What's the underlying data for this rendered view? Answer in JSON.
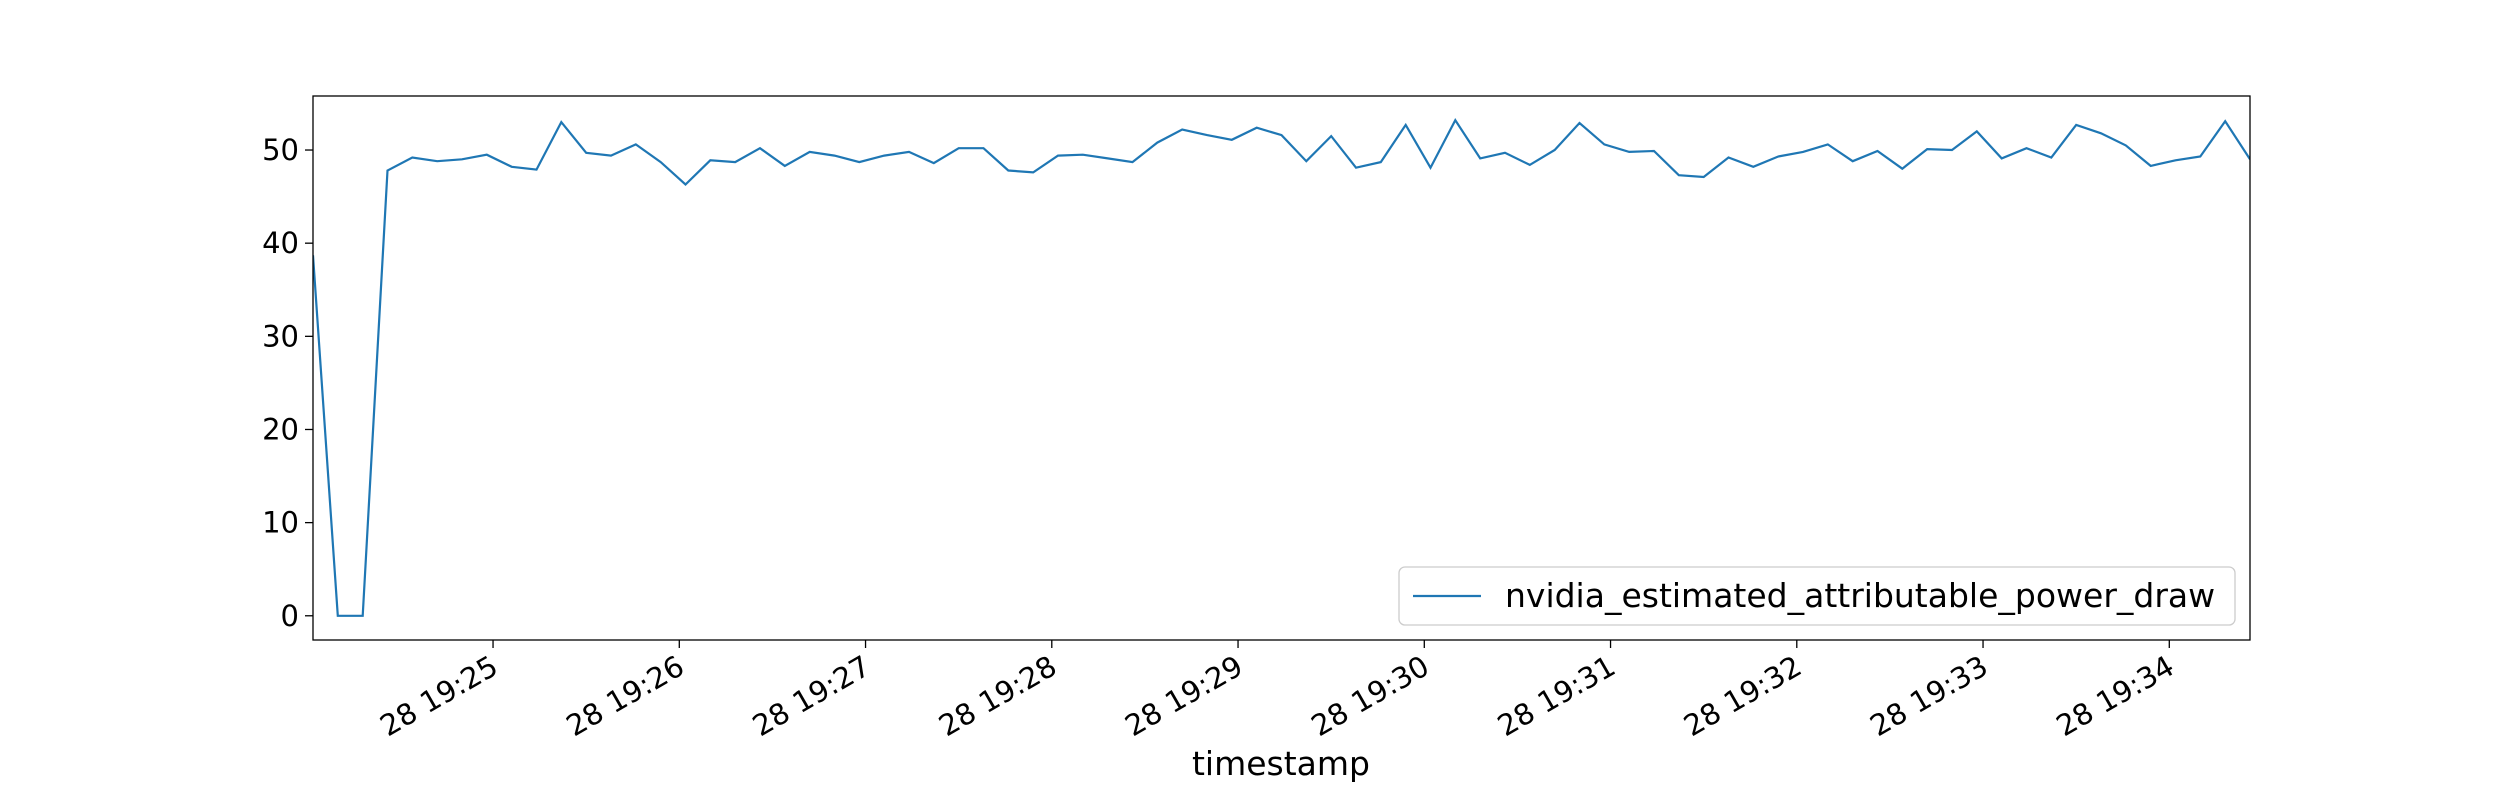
{
  "chart_data": {
    "type": "line",
    "xlabel": "timestamp",
    "x": [
      "28 19:24:02",
      "28 19:24:10",
      "28 19:24:18",
      "28 19:24:26",
      "28 19:24:34",
      "28 19:24:42",
      "28 19:24:50",
      "28 19:24:58",
      "28 19:25:06",
      "28 19:25:14",
      "28 19:25:22",
      "28 19:25:30",
      "28 19:25:38",
      "28 19:25:46",
      "28 19:25:54",
      "28 19:26:02",
      "28 19:26:10",
      "28 19:26:18",
      "28 19:26:26",
      "28 19:26:34",
      "28 19:26:42",
      "28 19:26:50",
      "28 19:26:58",
      "28 19:27:06",
      "28 19:27:14",
      "28 19:27:22",
      "28 19:27:30",
      "28 19:27:38",
      "28 19:27:46",
      "28 19:27:54",
      "28 19:28:02",
      "28 19:28:10",
      "28 19:28:18",
      "28 19:28:26",
      "28 19:28:34",
      "28 19:28:42",
      "28 19:28:50",
      "28 19:28:58",
      "28 19:29:06",
      "28 19:29:14",
      "28 19:29:22",
      "28 19:29:30",
      "28 19:29:38",
      "28 19:29:46",
      "28 19:29:54",
      "28 19:30:02",
      "28 19:30:10",
      "28 19:30:18",
      "28 19:30:26",
      "28 19:30:34",
      "28 19:30:42",
      "28 19:30:50",
      "28 19:30:58",
      "28 19:31:06",
      "28 19:31:14",
      "28 19:31:22",
      "28 19:31:30",
      "28 19:31:38",
      "28 19:31:46",
      "28 19:31:54",
      "28 19:32:02",
      "28 19:32:10",
      "28 19:32:18",
      "28 19:32:26",
      "28 19:32:34",
      "28 19:32:42",
      "28 19:32:50",
      "28 19:32:58",
      "28 19:33:06",
      "28 19:33:14",
      "28 19:33:22",
      "28 19:33:30",
      "28 19:33:38",
      "28 19:33:46",
      "28 19:33:54",
      "28 19:34:02",
      "28 19:34:10",
      "28 19:34:18",
      "28 19:34:26"
    ],
    "series": [
      {
        "name": "nvidia_estimated_attributable_power_draw",
        "color": "#1f77b4",
        "values": [
          38.7,
          0,
          0,
          47.8,
          49.2,
          48.8,
          49.0,
          49.5,
          48.2,
          47.9,
          53.0,
          49.7,
          49.4,
          50.6,
          48.7,
          46.3,
          48.9,
          48.7,
          50.2,
          48.3,
          49.8,
          49.4,
          48.7,
          49.4,
          49.8,
          48.6,
          50.2,
          50.2,
          47.8,
          47.6,
          49.4,
          49.5,
          49.1,
          48.7,
          50.8,
          52.2,
          51.6,
          51.1,
          52.4,
          51.6,
          48.8,
          51.5,
          48.1,
          48.7,
          52.7,
          48.1,
          53.2,
          49.1,
          49.7,
          48.4,
          50.0,
          52.9,
          50.6,
          49.8,
          49.9,
          47.3,
          47.1,
          49.2,
          48.2,
          49.3,
          49.8,
          50.6,
          48.8,
          49.9,
          48.0,
          50.1,
          50.0,
          52.0,
          49.1,
          50.2,
          49.2,
          52.7,
          51.8,
          50.5,
          48.3,
          48.9,
          49.3,
          53.1,
          49.0
        ]
      }
    ],
    "xlim": [
      "28 19:24:02",
      "28 19:34:26"
    ],
    "xticks": [
      "28 19:25",
      "28 19:26",
      "28 19:27",
      "28 19:28",
      "28 19:29",
      "28 19:30",
      "28 19:31",
      "28 19:32",
      "28 19:33",
      "28 19:34"
    ],
    "ylim": [
      -2.6,
      55.8
    ],
    "yticks": [
      0,
      10,
      20,
      30,
      40,
      50
    ],
    "grid": false,
    "legend": "lower right"
  }
}
